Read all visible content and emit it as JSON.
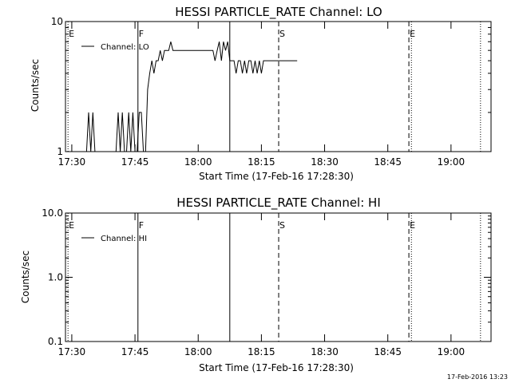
{
  "chart_data": [
    {
      "type": "line",
      "title": "HESSI PARTICLE_RATE Channel: LO",
      "xlabel": "Start Time (17-Feb-16 17:28:30)",
      "ylabel": "Counts/sec",
      "x_unit": "minutes after 17:28:30",
      "xlim": [
        0,
        101
      ],
      "ylim": [
        1,
        10
      ],
      "yscale": "log",
      "x_ticks": [
        "17:30",
        "17:45",
        "18:00",
        "18:15",
        "18:30",
        "18:45",
        "19:00"
      ],
      "y_ticks": [
        "1",
        "10"
      ],
      "grid": false,
      "legend_position": "top-left",
      "series": [
        {
          "name": "Channel: LO",
          "x": [
            4,
            5,
            5.5,
            6,
            6.5,
            7,
            7.5,
            8,
            8.5,
            9,
            10,
            11,
            11.5,
            12,
            12.5,
            13,
            13.5,
            14,
            14.5,
            15,
            15.5,
            16,
            16.5,
            17,
            17.5,
            18,
            18.5,
            19,
            19.5,
            20,
            20.5,
            21,
            21.5,
            22,
            22.5,
            23,
            23.5,
            24,
            24.5,
            25,
            25.5,
            26,
            26.5,
            27,
            27.5,
            28,
            29,
            30,
            31,
            32,
            33,
            34,
            35,
            35.5,
            36,
            36.5,
            37,
            37.5,
            38,
            38.5,
            39,
            39.5,
            40,
            40.5,
            41,
            41.5,
            42,
            42.5,
            43,
            43.5,
            44,
            44.5,
            45,
            45.5,
            46,
            46.5,
            47,
            47.5,
            48,
            48.5,
            49,
            49.5,
            50,
            50.5,
            51,
            51.5,
            52,
            52.5,
            53,
            54,
            55
          ],
          "values": [
            1,
            1,
            2,
            1,
            2,
            1,
            1,
            1,
            1,
            1,
            1,
            1,
            1,
            1,
            2,
            1,
            2,
            1,
            1,
            2,
            1,
            2,
            1,
            1,
            2,
            2,
            1,
            1,
            3,
            4,
            5,
            4,
            5,
            5,
            6,
            5,
            6,
            6,
            6,
            7,
            6,
            6,
            6,
            6,
            6,
            6,
            6,
            6,
            6,
            6,
            6,
            6,
            6,
            5,
            6,
            7,
            5,
            7,
            6,
            7,
            5,
            5,
            5,
            4,
            5,
            5,
            4,
            5,
            4,
            5,
            5,
            4,
            5,
            4,
            5,
            4,
            5,
            5,
            5,
            5,
            5,
            5,
            5,
            5,
            5,
            5,
            5,
            5,
            5,
            5,
            5
          ]
        }
      ],
      "markers": [
        {
          "x": 0.6,
          "label": "E",
          "style": "dotted"
        },
        {
          "x": 17.2,
          "label": "F",
          "style": "solid"
        },
        {
          "x": 39,
          "label": "",
          "style": "solid"
        },
        {
          "x": 50.6,
          "label": "S",
          "style": "dashed"
        },
        {
          "x": 81.5,
          "label": "E",
          "style": "dashed"
        },
        {
          "x": 82.1,
          "label": "",
          "style": "dotted"
        },
        {
          "x": 98.5,
          "label": "",
          "style": "dotted"
        }
      ]
    },
    {
      "type": "line",
      "title": "HESSI PARTICLE_RATE Channel: HI",
      "xlabel": "Start Time (17-Feb-16 17:28:30)",
      "ylabel": "Counts/sec",
      "x_unit": "minutes after 17:28:30",
      "xlim": [
        0,
        101
      ],
      "ylim": [
        0.1,
        10
      ],
      "yscale": "log",
      "x_ticks": [
        "17:30",
        "17:45",
        "18:00",
        "18:15",
        "18:30",
        "18:45",
        "19:00"
      ],
      "y_ticks": [
        "0.1",
        "1.0",
        "10.0"
      ],
      "grid": false,
      "legend_position": "top-left",
      "series": [
        {
          "name": "Channel: HI",
          "x": [],
          "values": []
        }
      ],
      "markers": [
        {
          "x": 0.6,
          "label": "E",
          "style": "dotted"
        },
        {
          "x": 17.2,
          "label": "F",
          "style": "solid"
        },
        {
          "x": 39,
          "label": "",
          "style": "solid"
        },
        {
          "x": 50.6,
          "label": "S",
          "style": "dashed"
        },
        {
          "x": 81.5,
          "label": "E",
          "style": "dashed"
        },
        {
          "x": 82.1,
          "label": "",
          "style": "dotted"
        },
        {
          "x": 98.5,
          "label": "",
          "style": "dotted"
        }
      ]
    }
  ],
  "footer": {
    "timestamp": "17-Feb-2016 13:23"
  }
}
